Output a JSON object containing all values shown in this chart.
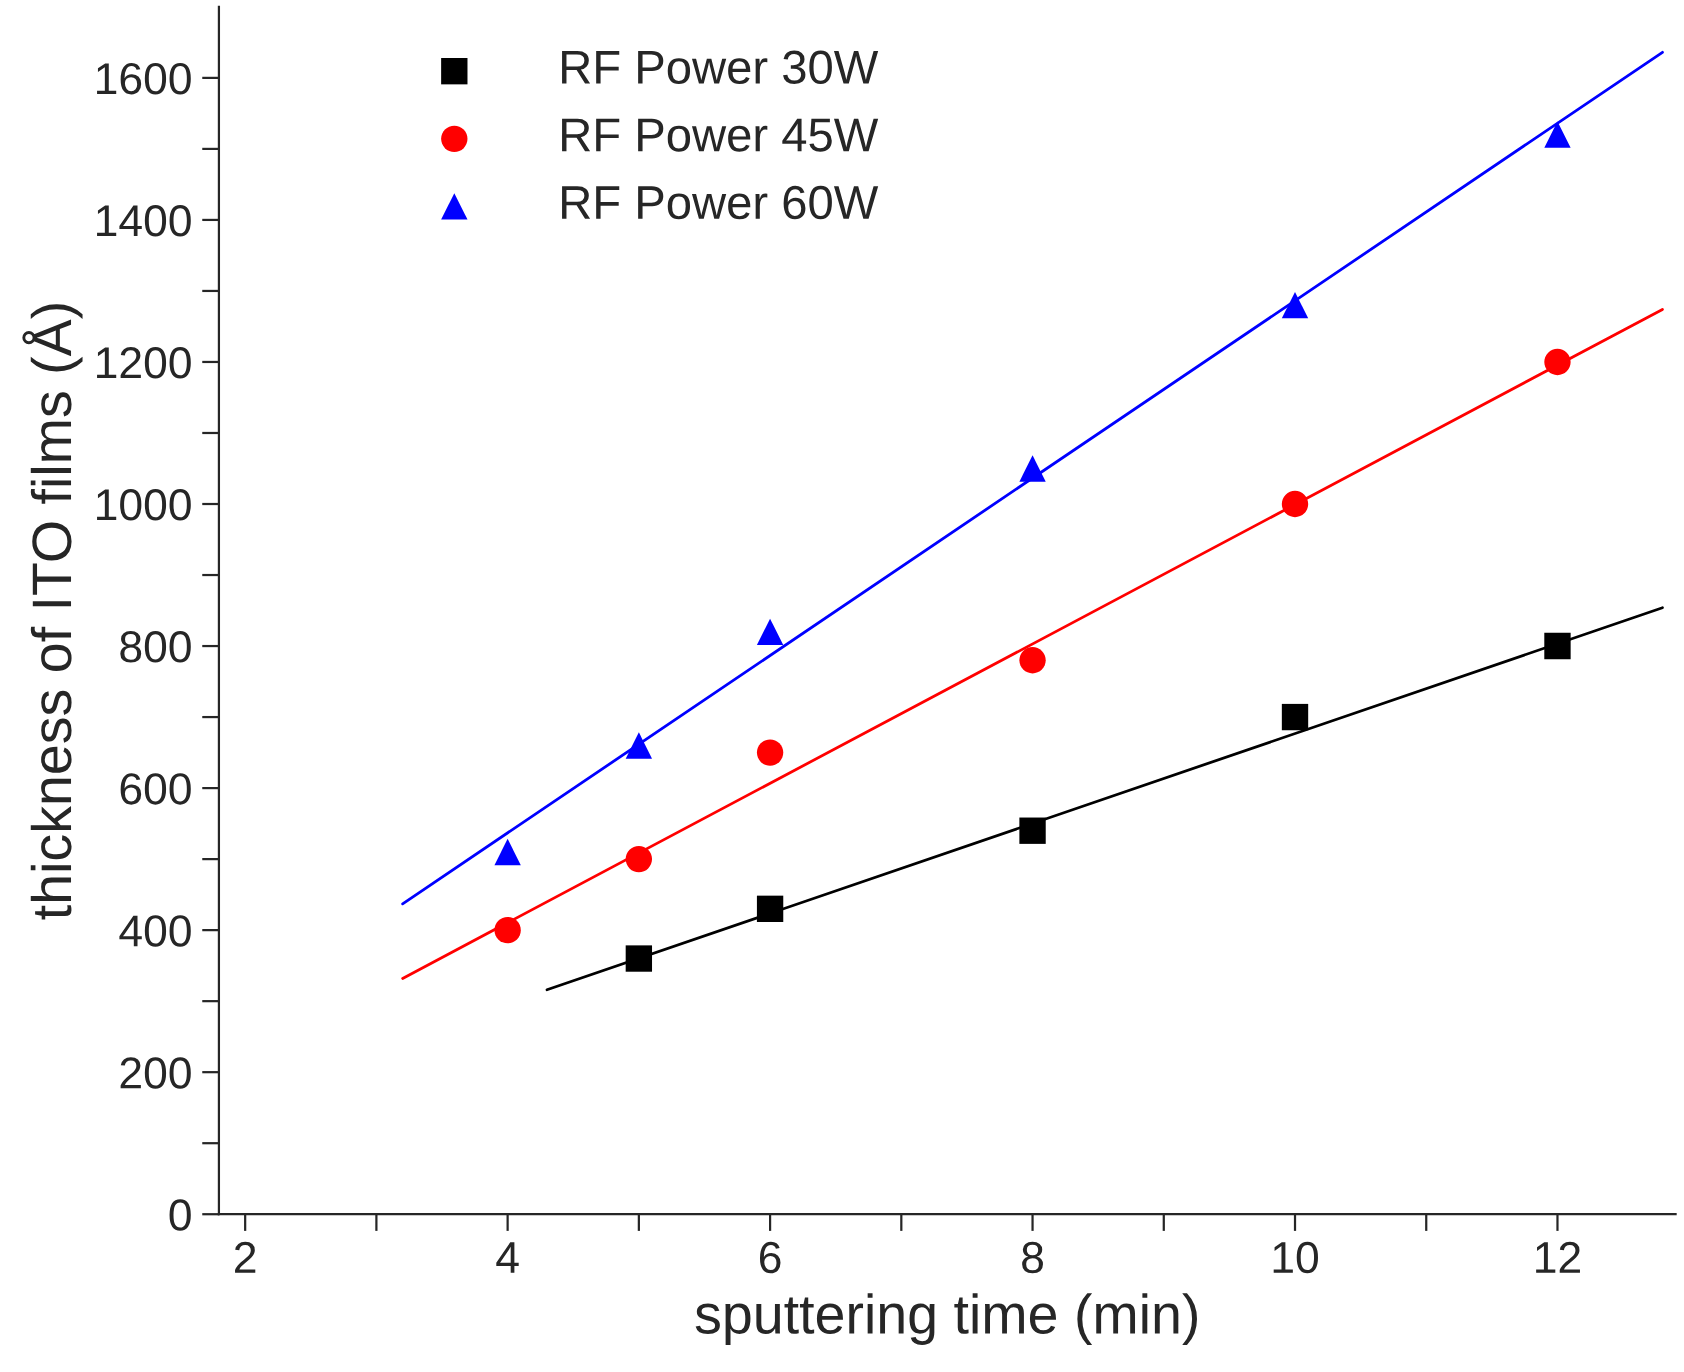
{
  "chart_data": {
    "type": "scatter",
    "xlabel": "sputtering time (min)",
    "ylabel": "thickness of ITO films (Å)",
    "xlim": [
      1.8,
      12.9
    ],
    "ylim": [
      0,
      1700
    ],
    "xticks": [
      2,
      {
        "value": 3,
        "label": null
      },
      4,
      {
        "value": 5,
        "label": null
      },
      6,
      {
        "value": 7,
        "label": null
      },
      8,
      {
        "value": 9,
        "label": null
      },
      10,
      {
        "value": 11,
        "label": null
      },
      12
    ],
    "yticks": [
      0,
      {
        "value": 100,
        "label": null
      },
      200,
      {
        "value": 300,
        "label": null
      },
      400,
      {
        "value": 500,
        "label": null
      },
      600,
      {
        "value": 700,
        "label": null
      },
      800,
      {
        "value": 900,
        "label": null
      },
      1000,
      {
        "value": 1100,
        "label": null
      },
      1200,
      {
        "value": 1300,
        "label": null
      },
      1400,
      {
        "value": 1500,
        "label": null
      },
      1600
    ],
    "grid": false,
    "legend": "top left",
    "series": [
      {
        "name": "RF Power 30W",
        "color": "#000000",
        "marker": "square",
        "x": [
          5,
          6,
          8,
          10,
          12
        ],
        "values": [
          360,
          430,
          540,
          700,
          800
        ]
      },
      {
        "name": "RF Power 45W",
        "color": "#ff0000",
        "marker": "circle",
        "x": [
          4,
          5,
          6,
          8,
          10,
          12
        ],
        "values": [
          400,
          500,
          650,
          780,
          1000,
          1200
        ]
      },
      {
        "name": "RF Power 60W",
        "color": "#0000ff",
        "marker": "triangle",
        "x": [
          4,
          5,
          6,
          8,
          10,
          12
        ],
        "values": [
          510,
          660,
          820,
          1050,
          1280,
          1520
        ]
      },
      {
        "type": "line",
        "color": "#000000",
        "x": [
          4.3,
          12.8
        ],
        "values": [
          316,
          854
        ]
      },
      {
        "type": "line",
        "color": "#ff0000",
        "x": [
          3.2,
          12.8
        ],
        "values": [
          332,
          1274
        ]
      },
      {
        "type": "line",
        "color": "#0000ff",
        "x": [
          3.2,
          12.8
        ],
        "values": [
          437,
          1636
        ]
      }
    ]
  }
}
